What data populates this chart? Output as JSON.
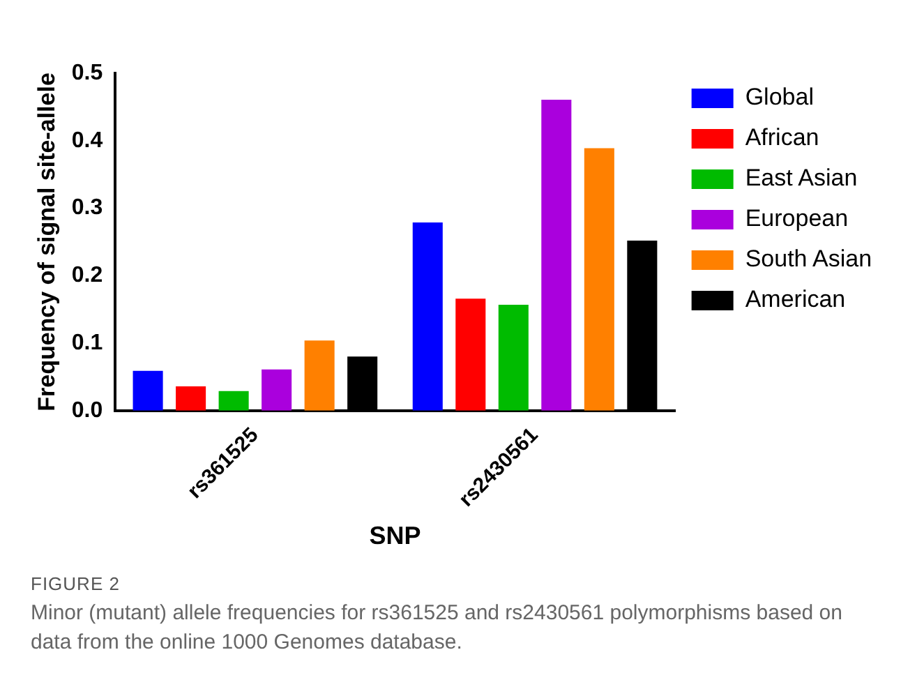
{
  "chart_data": {
    "type": "bar",
    "xlabel": "SNP",
    "ylabel": "Frequency of signal site-allele",
    "categories": [
      "rs361525",
      "rs2430561"
    ],
    "series": [
      {
        "name": "Global",
        "color": "#0000ff",
        "values": [
          0.059,
          0.279
        ]
      },
      {
        "name": "African",
        "color": "#ff0000",
        "values": [
          0.036,
          0.166
        ]
      },
      {
        "name": "East Asian",
        "color": "#00bb00",
        "values": [
          0.029,
          0.157
        ]
      },
      {
        "name": "European",
        "color": "#aa00dd",
        "values": [
          0.061,
          0.461
        ]
      },
      {
        "name": "South Asian",
        "color": "#ff8000",
        "values": [
          0.104,
          0.389
        ]
      },
      {
        "name": "American",
        "color": "#000000",
        "values": [
          0.08,
          0.252
        ]
      }
    ],
    "ylim": [
      0,
      0.5
    ],
    "yticks": [
      {
        "value": 0,
        "label": "0.0"
      },
      {
        "value": 0.1,
        "label": "0.1"
      },
      {
        "value": 0.2,
        "label": "0.2"
      },
      {
        "value": 0.3,
        "label": "0.3"
      },
      {
        "value": 0.4,
        "label": "0.4"
      },
      {
        "value": 0.5,
        "label": "0.5"
      }
    ],
    "grid": false,
    "legend": "right",
    "annotations": [
      "FIGURE 2",
      "Minor (mutant) allele frequencies for rs361525 and rs2430561 polymorphisms based on data from the online 1000 Genomes database."
    ]
  }
}
